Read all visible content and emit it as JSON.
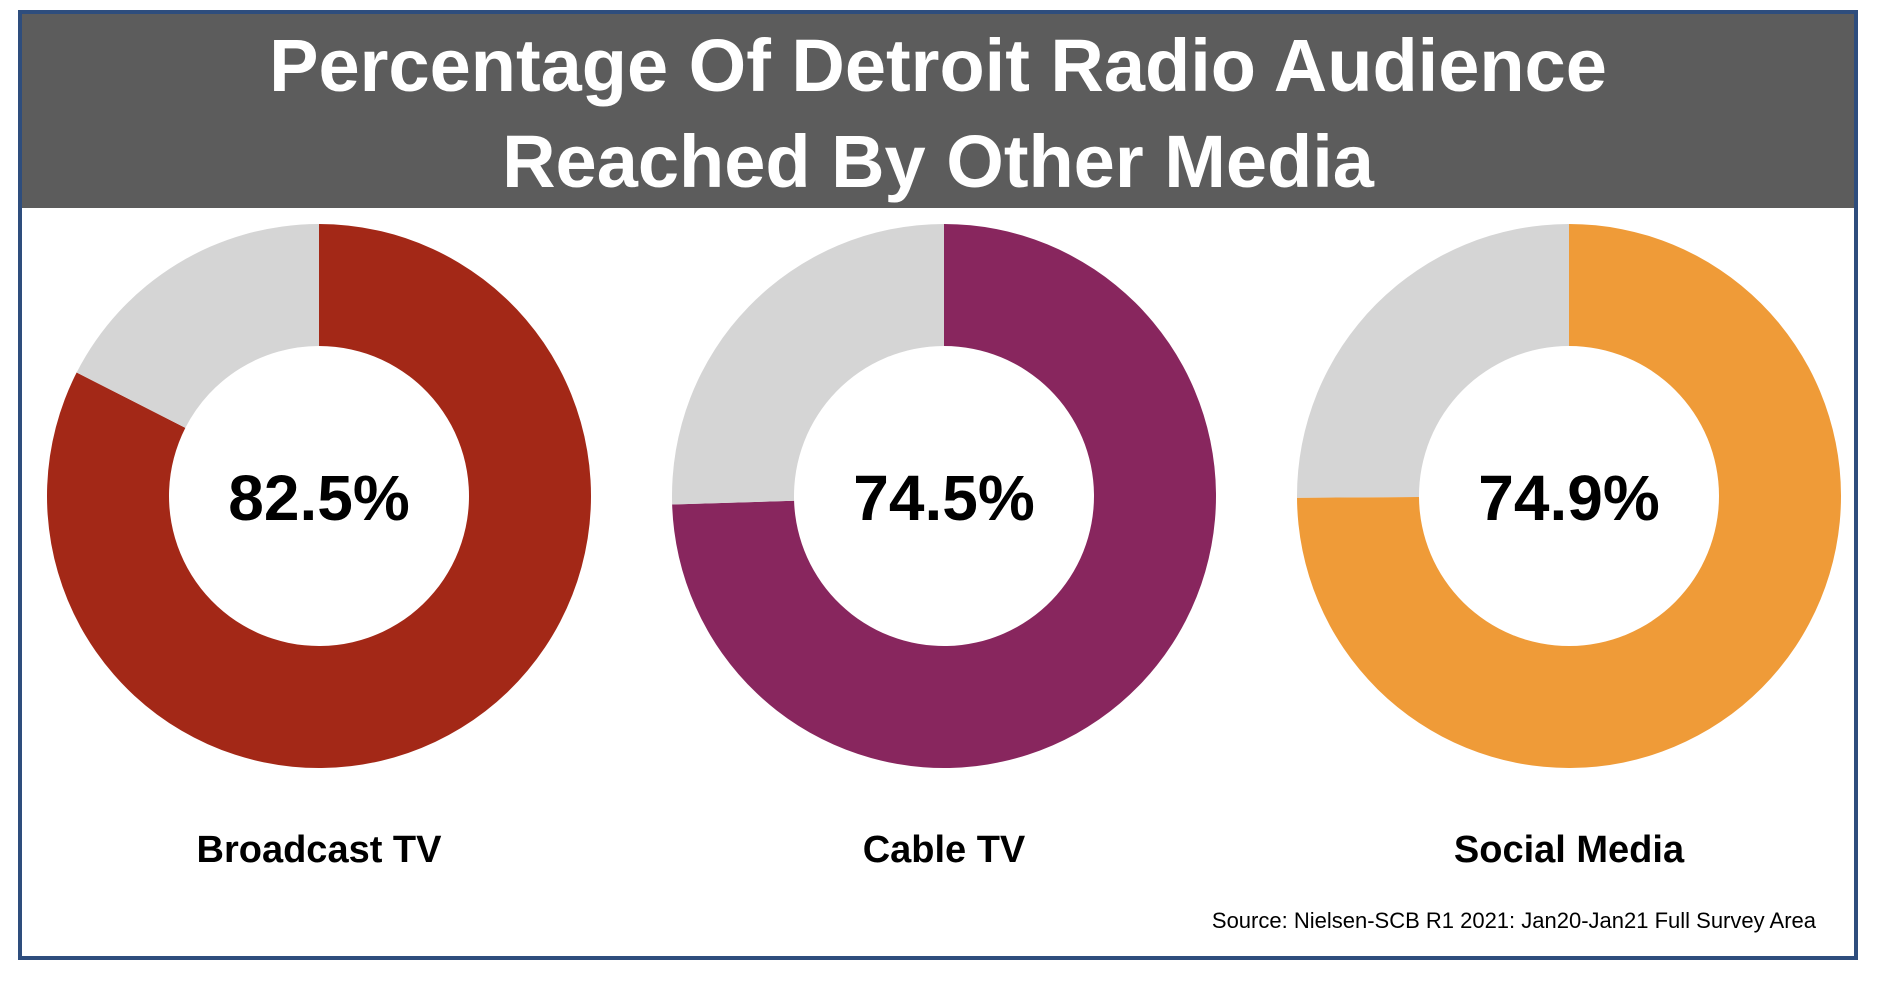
{
  "header": {
    "title_line1": "Percentage Of Detroit Radio Audience",
    "title_line2": "Reached By Other Media"
  },
  "chart_data": [
    {
      "type": "pie",
      "style": "donut",
      "label": "Broadcast TV",
      "value_label": "82.5%",
      "values": [
        82.5,
        17.5
      ],
      "colors": [
        "#a32817",
        "#d5d5d5"
      ]
    },
    {
      "type": "pie",
      "style": "donut",
      "label": "Cable TV",
      "value_label": "74.5%",
      "values": [
        74.5,
        25.5
      ],
      "colors": [
        "#88265e",
        "#d5d5d5"
      ]
    },
    {
      "type": "pie",
      "style": "donut",
      "label": "Social Media",
      "value_label": "74.9%",
      "values": [
        74.9,
        25.1
      ],
      "colors": [
        "#ef9b38",
        "#d5d5d5"
      ]
    }
  ],
  "footer": {
    "source": "Source: Nielsen-SCB R1 2021: Jan20-Jan21 Full Survey Area"
  }
}
